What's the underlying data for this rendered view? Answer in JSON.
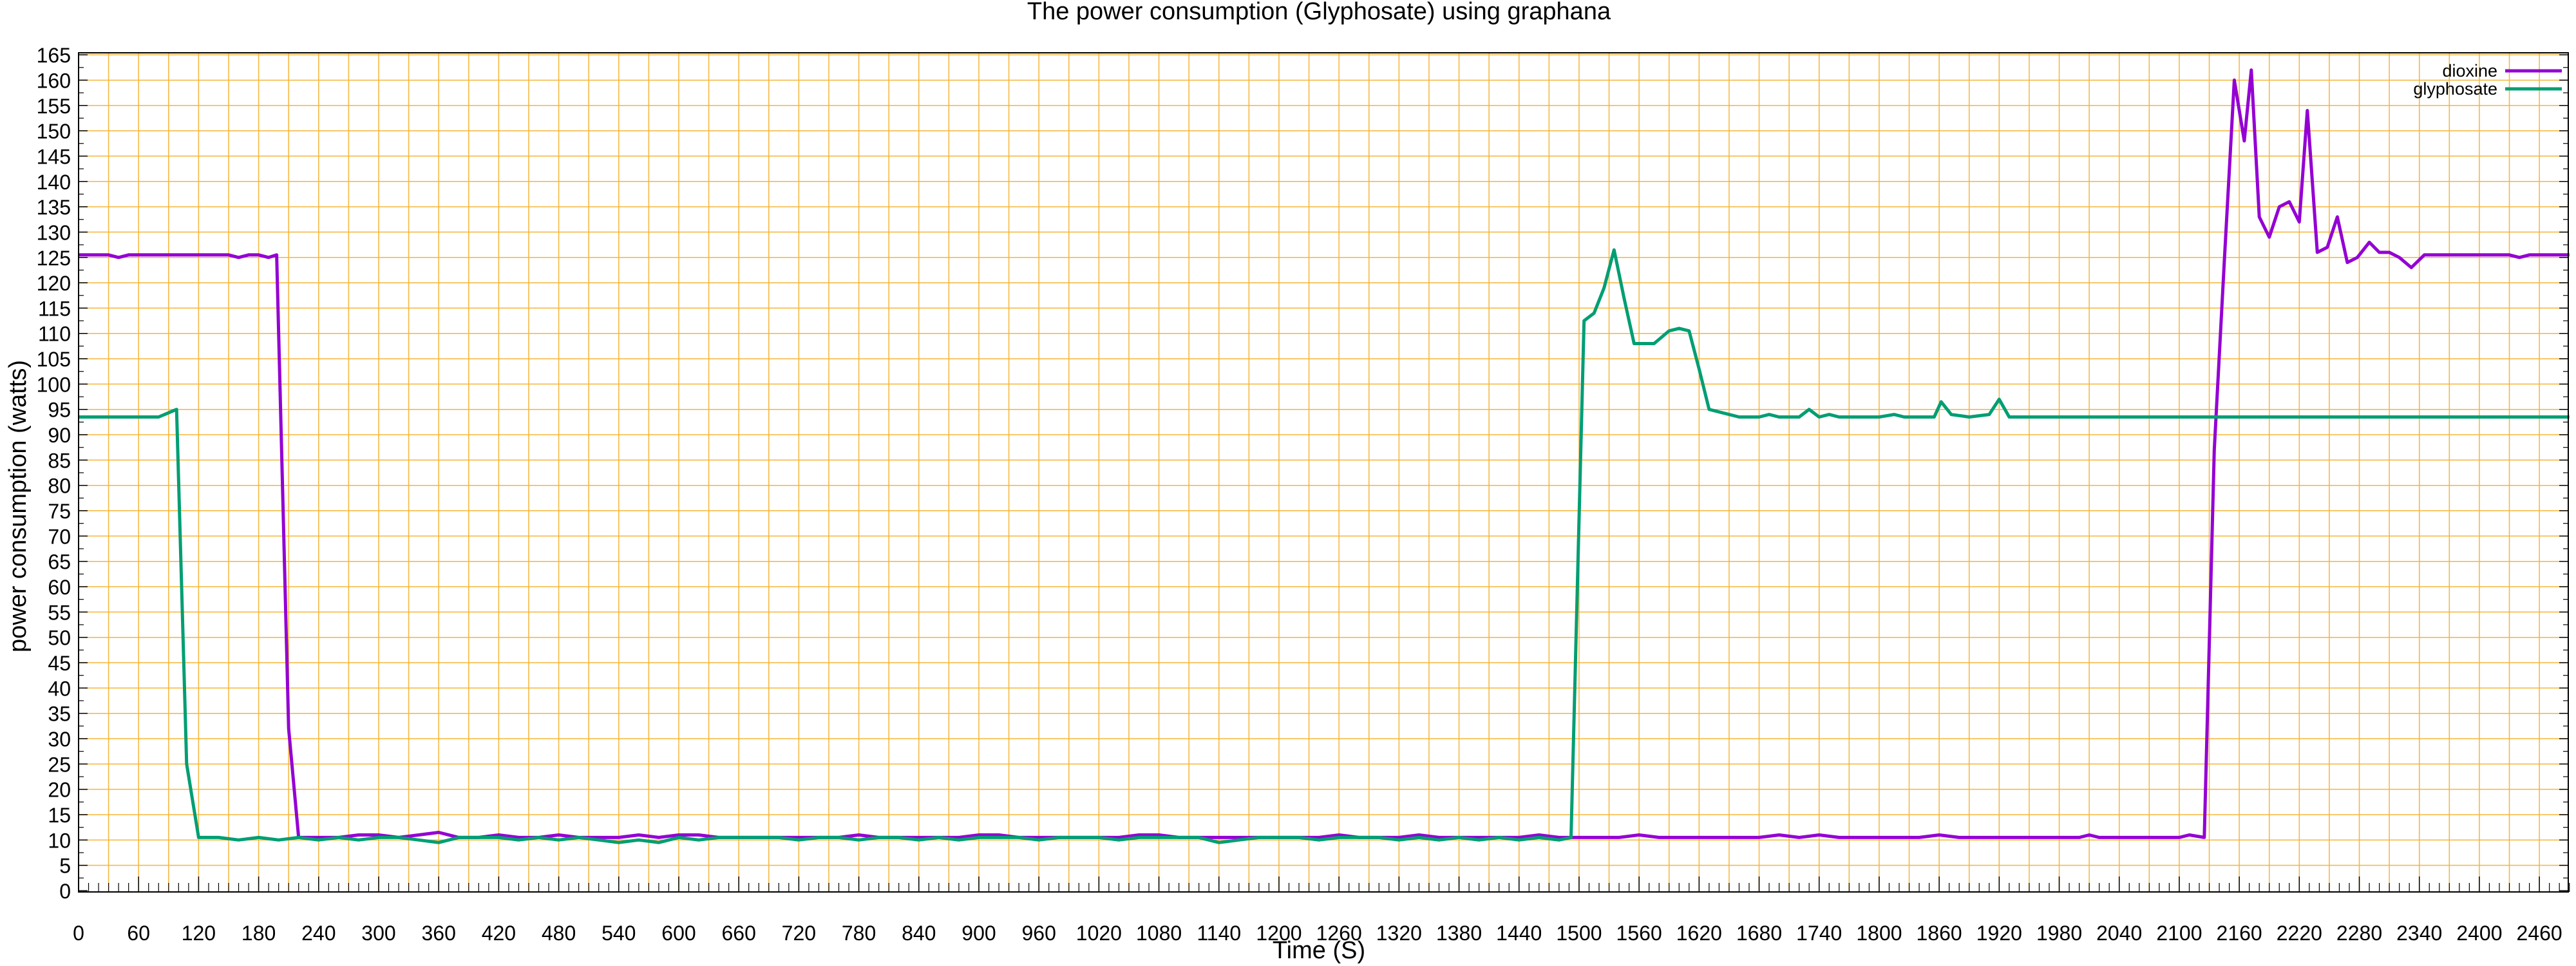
{
  "chart_data": {
    "type": "line",
    "title": "The power consumption (Glyphosate) using graphana",
    "xlabel": "Time (S)",
    "ylabel": "power consumption (watts)",
    "xlim": [
      0,
      2490
    ],
    "ylim": [
      0,
      165
    ],
    "x_ticks": [
      0,
      60,
      120,
      180,
      240,
      300,
      360,
      420,
      480,
      540,
      600,
      660,
      720,
      780,
      840,
      900,
      960,
      1020,
      1080,
      1140,
      1200,
      1260,
      1320,
      1380,
      1440,
      1500,
      1560,
      1620,
      1680,
      1740,
      1800,
      1860,
      1920,
      1980,
      2040,
      2100,
      2160,
      2220,
      2280,
      2340,
      2400,
      2460
    ],
    "y_ticks": [
      0,
      5,
      10,
      15,
      20,
      25,
      30,
      35,
      40,
      45,
      50,
      55,
      60,
      65,
      70,
      75,
      80,
      85,
      90,
      95,
      100,
      105,
      110,
      115,
      120,
      125,
      130,
      135,
      140,
      145,
      150,
      155,
      160,
      165
    ],
    "grid": true,
    "grid_color": "#f5b53a",
    "legend_position": "top-right",
    "series": [
      {
        "name": "dioxine",
        "color": "#9400d3",
        "points": [
          [
            0,
            125.5
          ],
          [
            30,
            125.5
          ],
          [
            40,
            125
          ],
          [
            50,
            125.5
          ],
          [
            100,
            125.5
          ],
          [
            150,
            125.5
          ],
          [
            160,
            125
          ],
          [
            170,
            125.5
          ],
          [
            180,
            125.5
          ],
          [
            190,
            125
          ],
          [
            198,
            125.5
          ],
          [
            210,
            32
          ],
          [
            220,
            10.5
          ],
          [
            240,
            10.5
          ],
          [
            260,
            10.5
          ],
          [
            280,
            11
          ],
          [
            300,
            11
          ],
          [
            320,
            10.5
          ],
          [
            340,
            11
          ],
          [
            360,
            11.5
          ],
          [
            380,
            10.5
          ],
          [
            400,
            10.5
          ],
          [
            420,
            11
          ],
          [
            440,
            10.5
          ],
          [
            460,
            10.5
          ],
          [
            480,
            11
          ],
          [
            500,
            10.5
          ],
          [
            520,
            10.5
          ],
          [
            540,
            10.5
          ],
          [
            560,
            11
          ],
          [
            580,
            10.5
          ],
          [
            600,
            11
          ],
          [
            620,
            11
          ],
          [
            640,
            10.5
          ],
          [
            660,
            10.5
          ],
          [
            700,
            10.5
          ],
          [
            720,
            10.5
          ],
          [
            740,
            10.5
          ],
          [
            760,
            10.5
          ],
          [
            780,
            11
          ],
          [
            800,
            10.5
          ],
          [
            820,
            10.5
          ],
          [
            840,
            10.5
          ],
          [
            860,
            10.5
          ],
          [
            880,
            10.5
          ],
          [
            900,
            11
          ],
          [
            920,
            11
          ],
          [
            940,
            10.5
          ],
          [
            960,
            10.5
          ],
          [
            1000,
            10.5
          ],
          [
            1040,
            10.5
          ],
          [
            1060,
            11
          ],
          [
            1080,
            11
          ],
          [
            1100,
            10.5
          ],
          [
            1140,
            10.5
          ],
          [
            1160,
            10.5
          ],
          [
            1180,
            10.5
          ],
          [
            1200,
            10.5
          ],
          [
            1240,
            10.5
          ],
          [
            1260,
            11
          ],
          [
            1280,
            10.5
          ],
          [
            1300,
            10.5
          ],
          [
            1320,
            10.5
          ],
          [
            1340,
            11
          ],
          [
            1360,
            10.5
          ],
          [
            1400,
            10.5
          ],
          [
            1440,
            10.5
          ],
          [
            1460,
            11
          ],
          [
            1480,
            10.5
          ],
          [
            1500,
            10.5
          ],
          [
            1540,
            10.5
          ],
          [
            1560,
            11
          ],
          [
            1580,
            10.5
          ],
          [
            1620,
            10.5
          ],
          [
            1660,
            10.5
          ],
          [
            1680,
            10.5
          ],
          [
            1700,
            11
          ],
          [
            1720,
            10.5
          ],
          [
            1740,
            11
          ],
          [
            1760,
            10.5
          ],
          [
            1800,
            10.5
          ],
          [
            1840,
            10.5
          ],
          [
            1860,
            11
          ],
          [
            1880,
            10.5
          ],
          [
            1920,
            10.5
          ],
          [
            1960,
            10.5
          ],
          [
            2000,
            10.5
          ],
          [
            2010,
            11
          ],
          [
            2020,
            10.5
          ],
          [
            2060,
            10.5
          ],
          [
            2100,
            10.5
          ],
          [
            2110,
            11
          ],
          [
            2125,
            10.5
          ],
          [
            2135,
            87
          ],
          [
            2145,
            124
          ],
          [
            2155,
            160
          ],
          [
            2165,
            148
          ],
          [
            2172,
            162
          ],
          [
            2180,
            133
          ],
          [
            2190,
            129
          ],
          [
            2200,
            135
          ],
          [
            2210,
            136
          ],
          [
            2220,
            132
          ],
          [
            2228,
            154
          ],
          [
            2238,
            126
          ],
          [
            2248,
            127
          ],
          [
            2258,
            133
          ],
          [
            2268,
            124
          ],
          [
            2278,
            125
          ],
          [
            2290,
            128
          ],
          [
            2300,
            126
          ],
          [
            2310,
            126
          ],
          [
            2320,
            125
          ],
          [
            2332,
            123
          ],
          [
            2345,
            125.5
          ],
          [
            2360,
            125.5
          ],
          [
            2400,
            125.5
          ],
          [
            2430,
            125.5
          ],
          [
            2440,
            125
          ],
          [
            2450,
            125.5
          ],
          [
            2490,
            125.5
          ]
        ]
      },
      {
        "name": "glyphosate",
        "color": "#009e73",
        "points": [
          [
            0,
            93.5
          ],
          [
            40,
            93.5
          ],
          [
            80,
            93.5
          ],
          [
            98,
            95
          ],
          [
            108,
            25
          ],
          [
            120,
            10.5
          ],
          [
            140,
            10.5
          ],
          [
            160,
            10
          ],
          [
            180,
            10.5
          ],
          [
            200,
            10
          ],
          [
            220,
            10.5
          ],
          [
            240,
            10
          ],
          [
            260,
            10.5
          ],
          [
            280,
            10
          ],
          [
            300,
            10.5
          ],
          [
            320,
            10.5
          ],
          [
            340,
            10
          ],
          [
            360,
            9.5
          ],
          [
            380,
            10.5
          ],
          [
            400,
            10.5
          ],
          [
            420,
            10.5
          ],
          [
            440,
            10
          ],
          [
            460,
            10.5
          ],
          [
            480,
            10
          ],
          [
            500,
            10.5
          ],
          [
            520,
            10
          ],
          [
            540,
            9.5
          ],
          [
            560,
            10
          ],
          [
            580,
            9.5
          ],
          [
            600,
            10.5
          ],
          [
            620,
            10
          ],
          [
            640,
            10.5
          ],
          [
            660,
            10.5
          ],
          [
            680,
            10.5
          ],
          [
            700,
            10.5
          ],
          [
            720,
            10
          ],
          [
            740,
            10.5
          ],
          [
            760,
            10.5
          ],
          [
            780,
            10
          ],
          [
            800,
            10.5
          ],
          [
            820,
            10.5
          ],
          [
            840,
            10
          ],
          [
            860,
            10.5
          ],
          [
            880,
            10
          ],
          [
            900,
            10.5
          ],
          [
            920,
            10.5
          ],
          [
            940,
            10.5
          ],
          [
            960,
            10
          ],
          [
            980,
            10.5
          ],
          [
            1000,
            10.5
          ],
          [
            1020,
            10.5
          ],
          [
            1040,
            10
          ],
          [
            1060,
            10.5
          ],
          [
            1080,
            10.5
          ],
          [
            1100,
            10.5
          ],
          [
            1120,
            10.5
          ],
          [
            1140,
            9.5
          ],
          [
            1160,
            10
          ],
          [
            1180,
            10.5
          ],
          [
            1200,
            10.5
          ],
          [
            1220,
            10.5
          ],
          [
            1240,
            10
          ],
          [
            1260,
            10.5
          ],
          [
            1280,
            10.5
          ],
          [
            1300,
            10.5
          ],
          [
            1320,
            10
          ],
          [
            1340,
            10.5
          ],
          [
            1360,
            10
          ],
          [
            1380,
            10.5
          ],
          [
            1400,
            10
          ],
          [
            1420,
            10.5
          ],
          [
            1440,
            10
          ],
          [
            1460,
            10.5
          ],
          [
            1480,
            10
          ],
          [
            1492,
            10.5
          ],
          [
            1505,
            112.5
          ],
          [
            1515,
            114
          ],
          [
            1525,
            119
          ],
          [
            1535,
            126.5
          ],
          [
            1545,
            117
          ],
          [
            1555,
            108
          ],
          [
            1575,
            108
          ],
          [
            1590,
            110.5
          ],
          [
            1600,
            111
          ],
          [
            1610,
            110.5
          ],
          [
            1620,
            103
          ],
          [
            1630,
            95
          ],
          [
            1650,
            94
          ],
          [
            1660,
            93.5
          ],
          [
            1680,
            93.5
          ],
          [
            1690,
            94
          ],
          [
            1700,
            93.5
          ],
          [
            1720,
            93.5
          ],
          [
            1730,
            95
          ],
          [
            1740,
            93.5
          ],
          [
            1750,
            94
          ],
          [
            1760,
            93.5
          ],
          [
            1800,
            93.5
          ],
          [
            1815,
            94
          ],
          [
            1825,
            93.5
          ],
          [
            1855,
            93.5
          ],
          [
            1862,
            96.5
          ],
          [
            1872,
            94
          ],
          [
            1890,
            93.5
          ],
          [
            1910,
            94
          ],
          [
            1920,
            97
          ],
          [
            1930,
            93.5
          ],
          [
            2000,
            93.5
          ],
          [
            2100,
            93.5
          ],
          [
            2200,
            93.5
          ],
          [
            2300,
            93.5
          ],
          [
            2400,
            93.5
          ],
          [
            2490,
            93.5
          ]
        ]
      }
    ]
  }
}
